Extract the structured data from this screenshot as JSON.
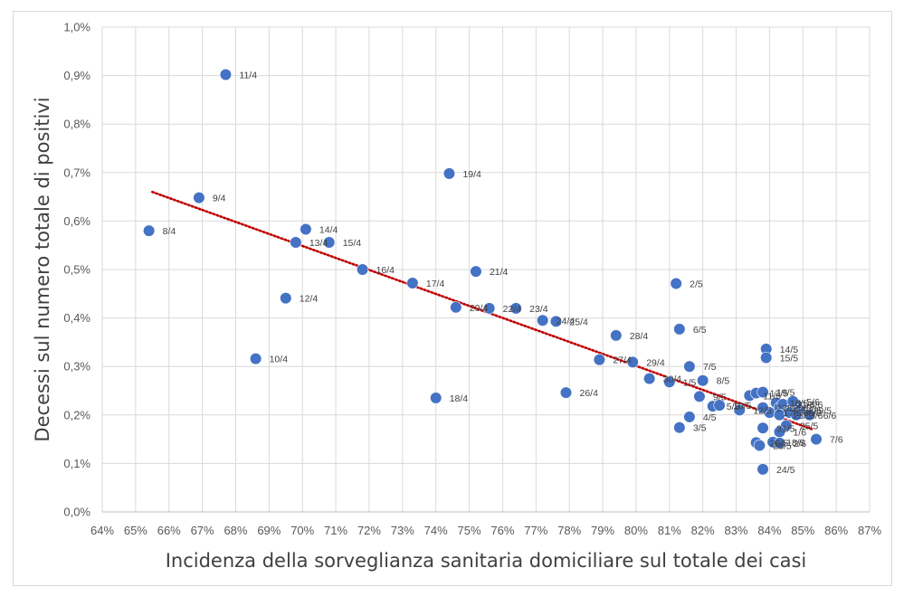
{
  "chart_data": {
    "type": "scatter",
    "title": "",
    "xlabel": "Incidenza della sorveglianza sanitaria domiciliare sul totale dei casi",
    "ylabel": "Decessi sul numero totale di positivi",
    "xlim": [
      64,
      87
    ],
    "ylim": [
      0,
      1.0
    ],
    "x_unit": "%",
    "y_unit": "%",
    "x_ticks": [
      "64%",
      "65%",
      "66%",
      "67%",
      "68%",
      "69%",
      "70%",
      "71%",
      "72%",
      "73%",
      "74%",
      "75%",
      "76%",
      "77%",
      "78%",
      "79%",
      "80%",
      "81%",
      "82%",
      "83%",
      "84%",
      "85%",
      "86%",
      "87%"
    ],
    "y_ticks": [
      "0,0%",
      "0,1%",
      "0,2%",
      "0,3%",
      "0,4%",
      "0,5%",
      "0,6%",
      "0,7%",
      "0,8%",
      "0,9%",
      "1,0%"
    ],
    "grid": true,
    "marker_color": "#4472c4",
    "trendline": {
      "type": "linear",
      "color": "#c00000",
      "style": "dotted",
      "x_start": 65.5,
      "y_start": 0.66,
      "x_end": 85.3,
      "y_end": 0.17
    },
    "points": [
      {
        "label": "8/4",
        "x": 65.4,
        "y": 0.58
      },
      {
        "label": "9/4",
        "x": 66.9,
        "y": 0.648
      },
      {
        "label": "10/4",
        "x": 68.6,
        "y": 0.316
      },
      {
        "label": "11/4",
        "x": 67.7,
        "y": 0.902
      },
      {
        "label": "12/4",
        "x": 69.5,
        "y": 0.441
      },
      {
        "label": "13/4",
        "x": 69.8,
        "y": 0.556
      },
      {
        "label": "14/4",
        "x": 70.1,
        "y": 0.583
      },
      {
        "label": "15/4",
        "x": 70.8,
        "y": 0.556
      },
      {
        "label": "16/4",
        "x": 71.8,
        "y": 0.5
      },
      {
        "label": "17/4",
        "x": 73.3,
        "y": 0.472
      },
      {
        "label": "18/4",
        "x": 74.0,
        "y": 0.235
      },
      {
        "label": "19/4",
        "x": 74.4,
        "y": 0.698
      },
      {
        "label": "20/4",
        "x": 74.6,
        "y": 0.422
      },
      {
        "label": "21/4",
        "x": 75.2,
        "y": 0.496
      },
      {
        "label": "22/4",
        "x": 75.6,
        "y": 0.42
      },
      {
        "label": "23/4",
        "x": 76.4,
        "y": 0.42
      },
      {
        "label": "24/4",
        "x": 77.2,
        "y": 0.395
      },
      {
        "label": "25/4",
        "x": 77.6,
        "y": 0.393
      },
      {
        "label": "26/4",
        "x": 77.9,
        "y": 0.246
      },
      {
        "label": "27/4",
        "x": 78.9,
        "y": 0.314
      },
      {
        "label": "28/4",
        "x": 79.4,
        "y": 0.364
      },
      {
        "label": "29/4",
        "x": 79.9,
        "y": 0.309
      },
      {
        "label": "30/4",
        "x": 80.4,
        "y": 0.275
      },
      {
        "label": "1/5",
        "x": 81.0,
        "y": 0.268
      },
      {
        "label": "2/5",
        "x": 81.2,
        "y": 0.471
      },
      {
        "label": "3/5",
        "x": 81.3,
        "y": 0.174
      },
      {
        "label": "4/5",
        "x": 81.6,
        "y": 0.196
      },
      {
        "label": "5/5",
        "x": 82.3,
        "y": 0.218
      },
      {
        "label": "6/5",
        "x": 81.3,
        "y": 0.377
      },
      {
        "label": "7/5",
        "x": 81.6,
        "y": 0.3
      },
      {
        "label": "8/5",
        "x": 82.0,
        "y": 0.271
      },
      {
        "label": "9/5",
        "x": 81.9,
        "y": 0.238
      },
      {
        "label": "10/5",
        "x": 82.5,
        "y": 0.22
      },
      {
        "label": "11/5",
        "x": 83.4,
        "y": 0.24
      },
      {
        "label": "12/5",
        "x": 83.1,
        "y": 0.21
      },
      {
        "label": "13/5",
        "x": 83.6,
        "y": 0.245
      },
      {
        "label": "14/5",
        "x": 83.9,
        "y": 0.336
      },
      {
        "label": "15/5",
        "x": 83.9,
        "y": 0.318
      },
      {
        "label": "16/5",
        "x": 84.2,
        "y": 0.225
      },
      {
        "label": "17/5",
        "x": 84.0,
        "y": 0.205
      },
      {
        "label": "18/5",
        "x": 84.1,
        "y": 0.144
      },
      {
        "label": "19/5",
        "x": 83.8,
        "y": 0.247
      },
      {
        "label": "20/5",
        "x": 84.3,
        "y": 0.215
      },
      {
        "label": "21/5",
        "x": 84.4,
        "y": 0.222
      },
      {
        "label": "22/5",
        "x": 84.6,
        "y": 0.21
      },
      {
        "label": "23/5",
        "x": 84.3,
        "y": 0.2
      },
      {
        "label": "24/5",
        "x": 83.8,
        "y": 0.088
      },
      {
        "label": "25/5",
        "x": 84.5,
        "y": 0.178
      },
      {
        "label": "26/5",
        "x": 83.6,
        "y": 0.143
      },
      {
        "label": "27/5",
        "x": 83.8,
        "y": 0.215
      },
      {
        "label": "28/5",
        "x": 83.7,
        "y": 0.137
      },
      {
        "label": "29/5",
        "x": 84.9,
        "y": 0.21
      },
      {
        "label": "30/5",
        "x": 84.6,
        "y": 0.205
      },
      {
        "label": "31/5",
        "x": 83.8,
        "y": 0.173
      },
      {
        "label": "1/6",
        "x": 84.3,
        "y": 0.165
      },
      {
        "label": "2/6",
        "x": 84.3,
        "y": 0.142
      },
      {
        "label": "3/6",
        "x": 84.8,
        "y": 0.2
      },
      {
        "label": "4/6",
        "x": 84.8,
        "y": 0.222
      },
      {
        "label": "5/6",
        "x": 84.7,
        "y": 0.228
      },
      {
        "label": "6/6",
        "x": 85.2,
        "y": 0.2
      },
      {
        "label": "7/6",
        "x": 85.4,
        "y": 0.15
      }
    ]
  }
}
